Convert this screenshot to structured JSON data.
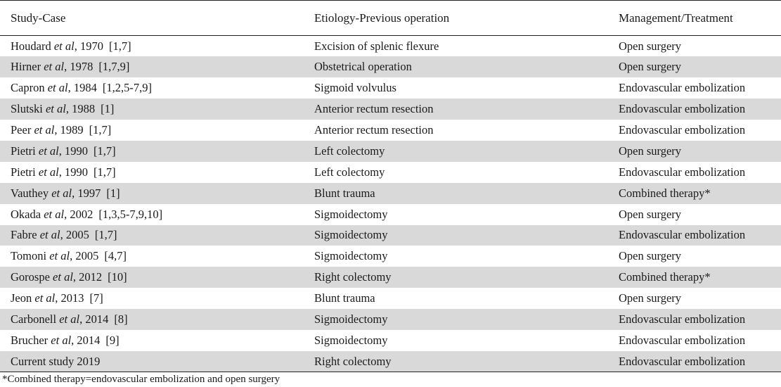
{
  "headers": {
    "study_case": "Study-Case",
    "etiology": "Etiology-Previous operation",
    "management": "Management/Treatment"
  },
  "rows": [
    {
      "author": "Houdard",
      "etal": "et al",
      "year": ", 1970",
      "refs": "[1,7]",
      "etiology": "Excision of splenic flexure",
      "treatment": "Open surgery"
    },
    {
      "author": "Hirner",
      "etal": "et al",
      "year": ", 1978",
      "refs": "[1,7,9]",
      "etiology": "Obstetrical operation",
      "treatment": "Open surgery"
    },
    {
      "author": "Capron",
      "etal": "et al",
      "year": ", 1984",
      "refs": "[1,2,5-7,9]",
      "etiology": "Sigmoid volvulus",
      "treatment": "Endovascular embolization"
    },
    {
      "author": "Slutski",
      "etal": "et al",
      "year": ", 1988",
      "refs": "[1]",
      "etiology": "Anterior rectum resection",
      "treatment": "Endovascular embolization"
    },
    {
      "author": "Peer",
      "etal": "et al",
      "year": ", 1989",
      "refs": "[1,7]",
      "etiology": "Anterior rectum resection",
      "treatment": "Endovascular embolization"
    },
    {
      "author": "Pietri",
      "etal": "et al",
      "year": ", 1990",
      "refs": "[1,7]",
      "etiology": "Left colectomy",
      "treatment": "Open surgery"
    },
    {
      "author": "Pietri",
      "etal": "et al",
      "year": ", 1990",
      "refs": "[1,7]",
      "etiology": "Left colectomy",
      "treatment": "Endovascular embolization"
    },
    {
      "author": "Vauthey",
      "etal": "et al",
      "year": ", 1997",
      "refs": "[1]",
      "etiology": "Blunt trauma",
      "treatment": "Combined therapy*"
    },
    {
      "author": "Okada",
      "etal": "et al",
      "year": ", 2002",
      "refs": "[1,3,5-7,9,10]",
      "etiology": "Sigmoidectomy",
      "treatment": "Open surgery"
    },
    {
      "author": "Fabre",
      "etal": "et al",
      "year": ", 2005",
      "refs": "[1,7]",
      "etiology": "Sigmoidectomy",
      "treatment": "Endovascular embolization"
    },
    {
      "author": "Tomoni",
      "etal": "et al",
      "year": ", 2005",
      "refs": "[4,7]",
      "etiology": "Sigmoidectomy",
      "treatment": "Open surgery"
    },
    {
      "author": "Gorospe",
      "etal": "et al",
      "year": ", 2012",
      "refs": "[10]",
      "etiology": "Right colectomy",
      "treatment": "Combined therapy*"
    },
    {
      "author": "Jeon",
      "etal": "et al",
      "year": ", 2013",
      "refs": "[7]",
      "etiology": "Blunt trauma",
      "treatment": "Open surgery"
    },
    {
      "author": "Carbonell",
      "etal": "et al",
      "year": ", 2014",
      "refs": "[8]",
      "etiology": "Sigmoidectomy",
      "treatment": "Endovascular embolization"
    },
    {
      "author": "Brucher",
      "etal": "et al",
      "year": ", 2014",
      "refs": "[9]",
      "etiology": "Sigmoidectomy",
      "treatment": "Endovascular embolization"
    },
    {
      "author": "Current study 2019",
      "etal": "",
      "year": "",
      "refs": "",
      "etiology": "Right colectomy",
      "treatment": "Endovascular embolization"
    }
  ],
  "footnote": "*Combined therapy=endovascular embolization and open surgery",
  "colors": {
    "shaded_row": "#d9d9d9",
    "rule": "#222222"
  }
}
